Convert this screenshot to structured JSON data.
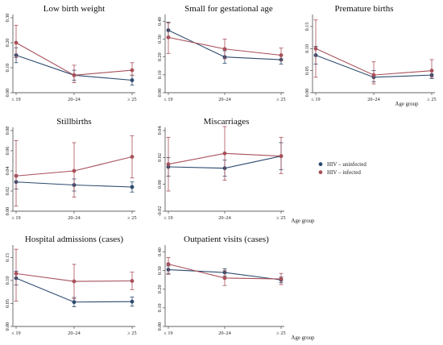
{
  "x_label": "Age group",
  "legend": [
    {
      "name": "HIV – uninfected",
      "color": "#2c4a6e"
    },
    {
      "name": "HIV – infected",
      "color": "#a8505a"
    }
  ],
  "chart_data": [
    {
      "type": "line",
      "title": "Low birth weight",
      "categories": [
        "≤ 19",
        "20–24",
        "≥ 25"
      ],
      "ylim": [
        0,
        0.3
      ],
      "yticks": [
        "0.00",
        "0.10",
        "0.20",
        "0.30"
      ],
      "grid": false,
      "xlabel": "",
      "series": [
        {
          "name": "HIV – uninfected",
          "values": [
            0.15,
            0.07,
            0.05
          ],
          "lower": [
            0.12,
            0.05,
            0.03
          ],
          "upper": [
            0.18,
            0.09,
            0.07
          ]
        },
        {
          "name": "HIV – infected",
          "values": [
            0.2,
            0.07,
            0.09
          ],
          "lower": [
            0.14,
            0.04,
            0.07
          ],
          "upper": [
            0.27,
            0.11,
            0.12
          ]
        }
      ]
    },
    {
      "type": "line",
      "title": "Small for gestational age",
      "categories": [
        "≤ 19",
        "20–24",
        "≥ 25"
      ],
      "ylim": [
        0,
        0.42
      ],
      "yticks": [
        "0.00",
        "0.10",
        "0.20",
        "0.30",
        "0.40"
      ],
      "grid": false,
      "xlabel": "",
      "series": [
        {
          "name": "HIV – uninfected",
          "values": [
            0.35,
            0.2,
            0.185
          ],
          "lower": [
            0.31,
            0.165,
            0.16
          ],
          "upper": [
            0.395,
            0.235,
            0.21
          ]
        },
        {
          "name": "HIV – infected",
          "values": [
            0.31,
            0.245,
            0.21
          ],
          "lower": [
            0.22,
            0.19,
            0.18
          ],
          "upper": [
            0.39,
            0.3,
            0.25
          ]
        }
      ]
    },
    {
      "type": "line",
      "title": "Premature births",
      "categories": [
        "≤ 19",
        "20–24",
        "≥ 25"
      ],
      "ylim": [
        0,
        0.17
      ],
      "yticks": [
        "0.00",
        "0.05",
        "0.10",
        "0.15"
      ],
      "grid": false,
      "xlabel": "Age group",
      "series": [
        {
          "name": "HIV – uninfected",
          "values": [
            0.085,
            0.035,
            0.04
          ],
          "lower": [
            0.065,
            0.025,
            0.032
          ],
          "upper": [
            0.105,
            0.05,
            0.05
          ]
        },
        {
          "name": "HIV – infected",
          "values": [
            0.1,
            0.04,
            0.05
          ],
          "lower": [
            0.035,
            0.02,
            0.035
          ],
          "upper": [
            0.165,
            0.07,
            0.075
          ]
        }
      ]
    },
    {
      "type": "line",
      "title": "Stillbirths",
      "categories": [
        "≤ 19",
        "20–24",
        "≥ 25"
      ],
      "ylim": [
        0,
        0.08
      ],
      "yticks": [
        "0.00",
        "0.02",
        "0.04",
        "0.06",
        "0.08"
      ],
      "grid": false,
      "xlabel": "",
      "series": [
        {
          "name": "HIV – uninfected",
          "values": [
            0.029,
            0.026,
            0.024
          ],
          "lower": [
            0.022,
            0.02,
            0.019
          ],
          "upper": [
            0.036,
            0.032,
            0.029
          ]
        },
        {
          "name": "HIV – infected",
          "values": [
            0.035,
            0.04,
            0.054
          ],
          "lower": [
            0.005,
            0.014,
            0.033
          ],
          "upper": [
            0.07,
            0.068,
            0.075
          ]
        }
      ]
    },
    {
      "type": "line",
      "title": "Miscarriages",
      "categories": [
        "≤ 19",
        "20–24",
        "≥ 25"
      ],
      "ylim": [
        -0.02,
        0.04
      ],
      "yticks": [
        "-0.02",
        "0.00",
        "0.02",
        "0.04"
      ],
      "grid": false,
      "xlabel": "Age group",
      "series": [
        {
          "name": "HIV – uninfected",
          "values": [
            0.013,
            0.012,
            0.021
          ],
          "lower": [
            0.006,
            0.006,
            0.011
          ],
          "upper": [
            0.02,
            0.018,
            0.031
          ]
        },
        {
          "name": "HIV – infected",
          "values": [
            0.015,
            0.023,
            0.021
          ],
          "lower": [
            -0.005,
            0.003,
            0.008
          ],
          "upper": [
            0.035,
            0.043,
            0.035
          ]
        }
      ]
    },
    {
      "type": "line",
      "title": "Hospital admissions (cases)",
      "categories": [
        "≤ 19",
        "20–24",
        "≥ 25"
      ],
      "ylim": [
        0,
        0.17
      ],
      "yticks": [
        "0.00",
        "0.05",
        "0.10",
        "0.15"
      ],
      "grid": false,
      "xlabel": "",
      "series": [
        {
          "name": "HIV – uninfected",
          "values": [
            0.105,
            0.053,
            0.054
          ],
          "lower": [
            0.09,
            0.043,
            0.044
          ],
          "upper": [
            0.12,
            0.063,
            0.064
          ]
        },
        {
          "name": "HIV – infected",
          "values": [
            0.115,
            0.098,
            0.099
          ],
          "lower": [
            0.055,
            0.06,
            0.08
          ],
          "upper": [
            0.168,
            0.135,
            0.118
          ]
        }
      ]
    },
    {
      "type": "line",
      "title": "Outpatient visits (cases)",
      "categories": [
        "≤ 19",
        "20–24",
        "≥ 25"
      ],
      "ylim": [
        0,
        0.42
      ],
      "yticks": [
        "0.00",
        "0.10",
        "0.20",
        "0.30",
        "0.40"
      ],
      "grid": false,
      "xlabel": "Age group",
      "series": [
        {
          "name": "HIV – uninfected",
          "values": [
            0.305,
            0.29,
            0.25
          ],
          "lower": [
            0.285,
            0.27,
            0.235
          ],
          "upper": [
            0.325,
            0.31,
            0.265
          ]
        },
        {
          "name": "HIV – infected",
          "values": [
            0.335,
            0.26,
            0.255
          ],
          "lower": [
            0.28,
            0.22,
            0.225
          ],
          "upper": [
            0.37,
            0.3,
            0.285
          ]
        }
      ]
    }
  ]
}
